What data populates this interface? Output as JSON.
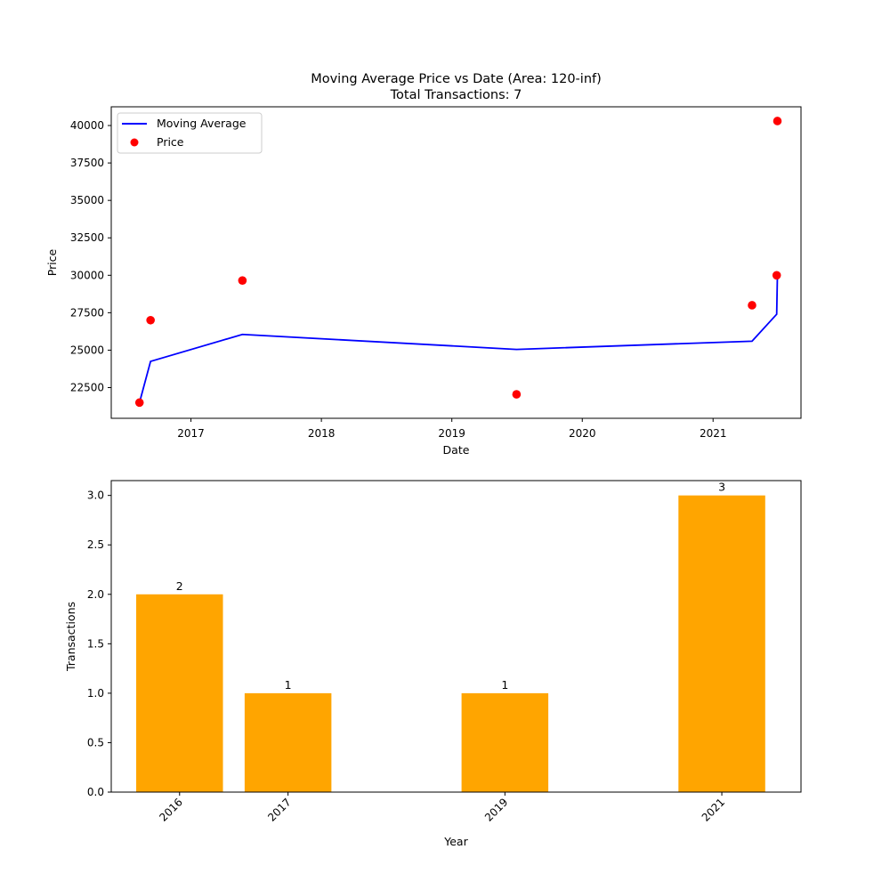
{
  "chart_data": [
    {
      "type": "line",
      "title": "Moving Average Price vs Date (Area: 120-inf)",
      "subtitle": "Total Transactions: 7",
      "xlabel": "Date",
      "ylabel": "Price",
      "xlim": [
        "2016-05-23",
        "2021-09-04"
      ],
      "ylim": [
        20450,
        41250
      ],
      "x_ticks": [
        "2017",
        "2018",
        "2019",
        "2020",
        "2021"
      ],
      "y_ticks": [
        "22500",
        "25000",
        "27500",
        "30000",
        "32500",
        "35000",
        "37500",
        "40000"
      ],
      "legend_position": "top-left",
      "grid": false,
      "series": [
        {
          "name": "Moving Average",
          "kind": "line",
          "color": "#0000ff",
          "x": [
            "2016-08-10",
            "2016-09-10",
            "2017-05-25",
            "2019-07-01",
            "2021-04-20",
            "2021-06-28",
            "2021-06-30"
          ],
          "y": [
            21500,
            24250,
            26050,
            25050,
            25600,
            27400,
            30000
          ]
        },
        {
          "name": "Price",
          "kind": "scatter",
          "color": "#ff0000",
          "x": [
            "2016-08-10",
            "2016-09-10",
            "2017-05-25",
            "2019-07-01",
            "2021-04-20",
            "2021-06-28",
            "2021-06-30"
          ],
          "y": [
            21500,
            27000,
            29650,
            22050,
            28000,
            30000,
            40300
          ]
        }
      ]
    },
    {
      "type": "bar",
      "title": "",
      "xlabel": "Year",
      "ylabel": "Transactions",
      "categories": [
        "2016",
        "2017",
        "2019",
        "2021"
      ],
      "x": [
        2016,
        2017,
        2019,
        2021
      ],
      "values": [
        2,
        1,
        1,
        3
      ],
      "data_labels": [
        "2",
        "1",
        "1",
        "3"
      ],
      "xlim": [
        2015.37,
        2021.73
      ],
      "ylim": [
        0,
        3.15
      ],
      "y_ticks": [
        "0.0",
        "0.5",
        "1.0",
        "1.5",
        "2.0",
        "2.5",
        "3.0"
      ],
      "color": "#ffa500",
      "grid": false
    }
  ]
}
